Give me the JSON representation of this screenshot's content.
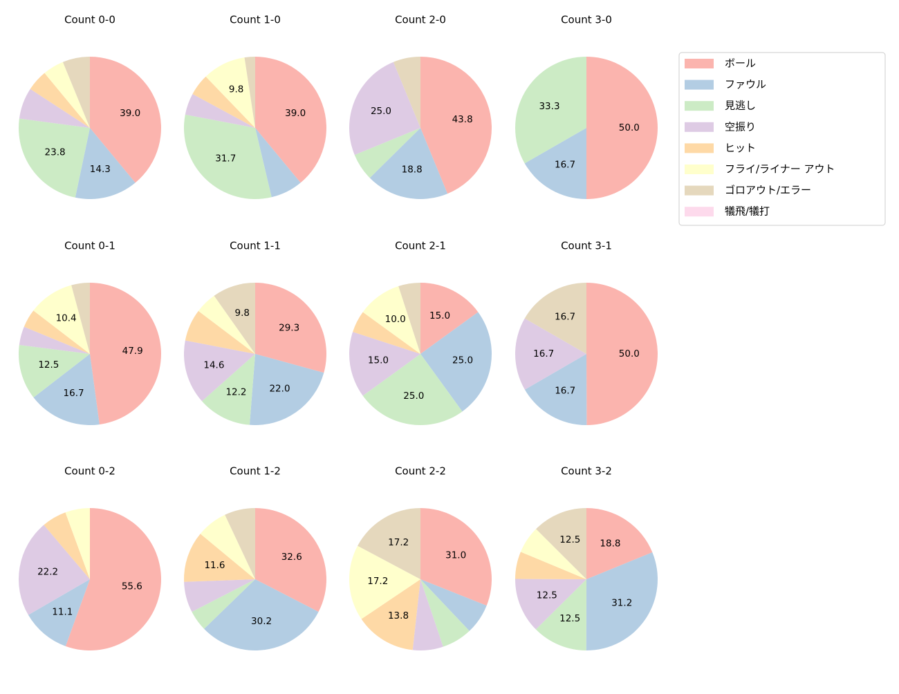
{
  "chart_data": [
    {
      "type": "pie",
      "title": "Count 0-0",
      "categories": [
        "ボール",
        "ファウル",
        "見逃し",
        "空振り",
        "ヒット",
        "フライ/ライナー アウト",
        "ゴロアウト/エラー",
        "犠飛/犠打"
      ],
      "colors": [
        "#fbb4ae",
        "#b3cde3",
        "#ccebc5",
        "#decbe4",
        "#fed9a6",
        "#ffffcc",
        "#e5d8bd",
        "#fddaec"
      ],
      "values": [
        39.0,
        14.3,
        23.8,
        7.1,
        4.8,
        4.8,
        6.2,
        0
      ],
      "value_labels": [
        "39.0",
        "14.3",
        "23.8",
        null,
        null,
        null,
        null,
        null
      ]
    },
    {
      "type": "pie",
      "title": "Count 1-0",
      "categories": [
        "ボール",
        "ファウル",
        "見逃し",
        "空振り",
        "ヒット",
        "フライ/ライナー アウト",
        "ゴロアウト/エラー",
        "犠飛/犠打"
      ],
      "colors": [
        "#fbb4ae",
        "#b3cde3",
        "#ccebc5",
        "#decbe4",
        "#fed9a6",
        "#ffffcc",
        "#e5d8bd",
        "#fddaec"
      ],
      "values": [
        39.0,
        7.3,
        31.7,
        4.9,
        4.9,
        9.8,
        2.4,
        0
      ],
      "value_labels": [
        "39.0",
        null,
        "31.7",
        null,
        null,
        "9.8",
        null,
        null
      ]
    },
    {
      "type": "pie",
      "title": "Count 2-0",
      "categories": [
        "ボール",
        "ファウル",
        "見逃し",
        "空振り",
        "ヒット",
        "フライ/ライナー アウト",
        "ゴロアウト/エラー",
        "犠飛/犠打"
      ],
      "colors": [
        "#fbb4ae",
        "#b3cde3",
        "#ccebc5",
        "#decbe4",
        "#fed9a6",
        "#ffffcc",
        "#e5d8bd",
        "#fddaec"
      ],
      "values": [
        43.8,
        18.8,
        6.2,
        25.0,
        0,
        0,
        6.2,
        0
      ],
      "value_labels": [
        "43.8",
        "18.8",
        null,
        "25.0",
        null,
        null,
        null,
        null
      ]
    },
    {
      "type": "pie",
      "title": "Count 3-0",
      "categories": [
        "ボール",
        "ファウル",
        "見逃し",
        "空振り",
        "ヒット",
        "フライ/ライナー アウト",
        "ゴロアウト/エラー",
        "犠飛/犠打"
      ],
      "colors": [
        "#fbb4ae",
        "#b3cde3",
        "#ccebc5",
        "#decbe4",
        "#fed9a6",
        "#ffffcc",
        "#e5d8bd",
        "#fddaec"
      ],
      "values": [
        50.0,
        16.7,
        33.3,
        0,
        0,
        0,
        0,
        0
      ],
      "value_labels": [
        "50.0",
        "16.7",
        "33.3",
        null,
        null,
        null,
        null,
        null
      ]
    },
    {
      "type": "pie",
      "title": "Count 0-1",
      "categories": [
        "ボール",
        "ファウル",
        "見逃し",
        "空振り",
        "ヒット",
        "フライ/ライナー アウト",
        "ゴロアウト/エラー",
        "犠飛/犠打"
      ],
      "colors": [
        "#fbb4ae",
        "#b3cde3",
        "#ccebc5",
        "#decbe4",
        "#fed9a6",
        "#ffffcc",
        "#e5d8bd",
        "#fddaec"
      ],
      "values": [
        47.9,
        16.7,
        12.5,
        4.2,
        4.2,
        10.4,
        4.2,
        0
      ],
      "value_labels": [
        "47.9",
        "16.7",
        "12.5",
        null,
        null,
        "10.4",
        null,
        null
      ]
    },
    {
      "type": "pie",
      "title": "Count 1-1",
      "categories": [
        "ボール",
        "ファウル",
        "見逃し",
        "空振り",
        "ヒット",
        "フライ/ライナー アウト",
        "ゴロアウト/エラー",
        "犠飛/犠打"
      ],
      "colors": [
        "#fbb4ae",
        "#b3cde3",
        "#ccebc5",
        "#decbe4",
        "#fed9a6",
        "#ffffcc",
        "#e5d8bd",
        "#fddaec"
      ],
      "values": [
        29.3,
        22.0,
        12.2,
        14.6,
        7.3,
        4.9,
        9.8,
        0
      ],
      "value_labels": [
        "29.3",
        "22.0",
        "12.2",
        "14.6",
        null,
        null,
        "9.8",
        null
      ]
    },
    {
      "type": "pie",
      "title": "Count 2-1",
      "categories": [
        "ボール",
        "ファウル",
        "見逃し",
        "空振り",
        "ヒット",
        "フライ/ライナー アウト",
        "ゴロアウト/エラー",
        "犠飛/犠打"
      ],
      "colors": [
        "#fbb4ae",
        "#b3cde3",
        "#ccebc5",
        "#decbe4",
        "#fed9a6",
        "#ffffcc",
        "#e5d8bd",
        "#fddaec"
      ],
      "values": [
        15.0,
        25.0,
        25.0,
        15.0,
        5.0,
        10.0,
        5.0,
        0
      ],
      "value_labels": [
        "15.0",
        "25.0",
        "25.0",
        "15.0",
        null,
        "10.0",
        null,
        null
      ]
    },
    {
      "type": "pie",
      "title": "Count 3-1",
      "categories": [
        "ボール",
        "ファウル",
        "見逃し",
        "空振り",
        "ヒット",
        "フライ/ライナー アウト",
        "ゴロアウト/エラー",
        "犠飛/犠打"
      ],
      "colors": [
        "#fbb4ae",
        "#b3cde3",
        "#ccebc5",
        "#decbe4",
        "#fed9a6",
        "#ffffcc",
        "#e5d8bd",
        "#fddaec"
      ],
      "values": [
        50.0,
        16.7,
        0,
        16.7,
        0,
        0,
        16.7,
        0
      ],
      "value_labels": [
        "50.0",
        "16.7",
        null,
        "16.7",
        null,
        null,
        "16.7",
        null
      ]
    },
    {
      "type": "pie",
      "title": "Count 0-2",
      "categories": [
        "ボール",
        "ファウル",
        "見逃し",
        "空振り",
        "ヒット",
        "フライ/ライナー アウト",
        "ゴロアウト/エラー",
        "犠飛/犠打"
      ],
      "colors": [
        "#fbb4ae",
        "#b3cde3",
        "#ccebc5",
        "#decbe4",
        "#fed9a6",
        "#ffffcc",
        "#e5d8bd",
        "#fddaec"
      ],
      "values": [
        55.6,
        11.1,
        0,
        22.2,
        5.6,
        5.6,
        0,
        0
      ],
      "value_labels": [
        "55.6",
        "11.1",
        null,
        "22.2",
        null,
        null,
        null,
        null
      ]
    },
    {
      "type": "pie",
      "title": "Count 1-2",
      "categories": [
        "ボール",
        "ファウル",
        "見逃し",
        "空振り",
        "ヒット",
        "フライ/ライナー アウト",
        "ゴロアウト/エラー",
        "犠飛/犠打"
      ],
      "colors": [
        "#fbb4ae",
        "#b3cde3",
        "#ccebc5",
        "#decbe4",
        "#fed9a6",
        "#ffffcc",
        "#e5d8bd",
        "#fddaec"
      ],
      "values": [
        32.6,
        30.2,
        4.7,
        7.0,
        11.6,
        7.0,
        7.0,
        0
      ],
      "value_labels": [
        "32.6",
        "30.2",
        null,
        null,
        "11.6",
        null,
        null,
        null
      ]
    },
    {
      "type": "pie",
      "title": "Count 2-2",
      "categories": [
        "ボール",
        "ファウル",
        "見逃し",
        "空振り",
        "ヒット",
        "フライ/ライナー アウト",
        "ゴロアウト/エラー",
        "犠飛/犠打"
      ],
      "colors": [
        "#fbb4ae",
        "#b3cde3",
        "#ccebc5",
        "#decbe4",
        "#fed9a6",
        "#ffffcc",
        "#e5d8bd",
        "#fddaec"
      ],
      "values": [
        31.0,
        6.9,
        6.9,
        6.9,
        13.8,
        17.2,
        17.2,
        0
      ],
      "value_labels": [
        "31.0",
        null,
        null,
        null,
        "13.8",
        "17.2",
        "17.2",
        null
      ]
    },
    {
      "type": "pie",
      "title": "Count 3-2",
      "categories": [
        "ボール",
        "ファウル",
        "見逃し",
        "空振り",
        "ヒット",
        "フライ/ライナー アウト",
        "ゴロアウト/エラー",
        "犠飛/犠打"
      ],
      "colors": [
        "#fbb4ae",
        "#b3cde3",
        "#ccebc5",
        "#decbe4",
        "#fed9a6",
        "#ffffcc",
        "#e5d8bd",
        "#fddaec"
      ],
      "values": [
        18.8,
        31.2,
        12.5,
        12.5,
        6.2,
        6.2,
        12.5,
        0
      ],
      "value_labels": [
        "18.8",
        "31.2",
        "12.5",
        "12.5",
        null,
        null,
        "12.5",
        null
      ]
    }
  ]
}
